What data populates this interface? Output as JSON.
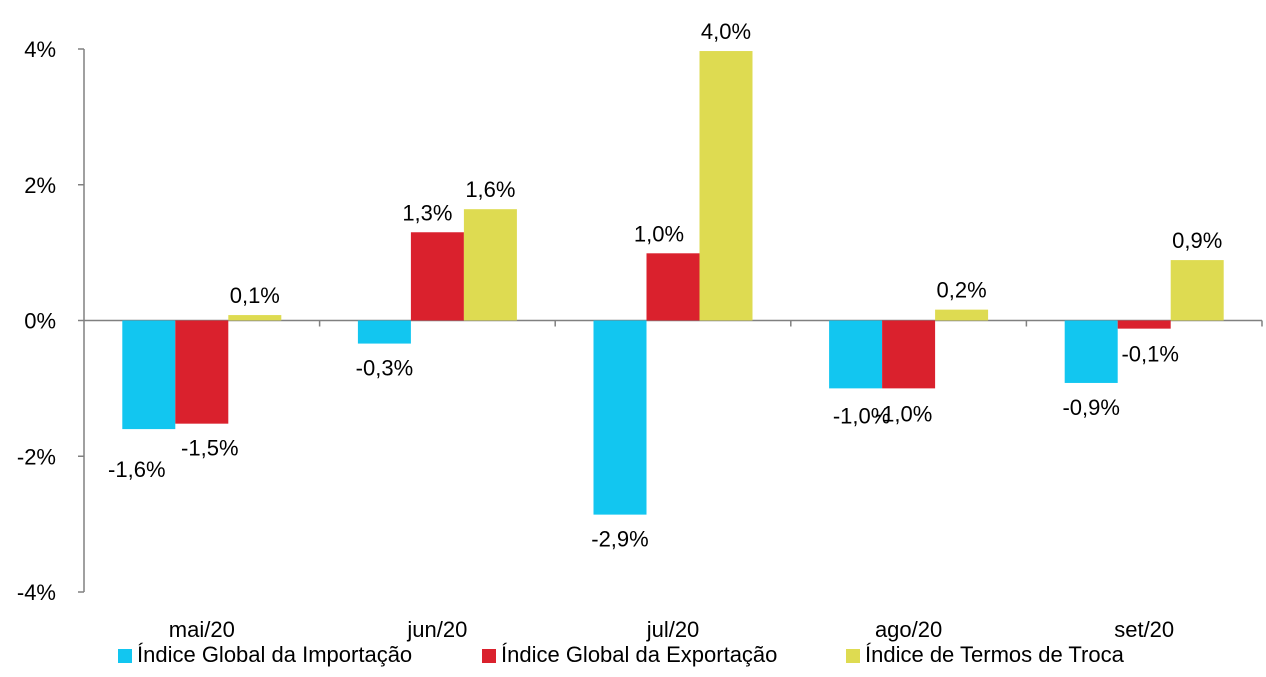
{
  "chart_data": {
    "type": "bar",
    "categories": [
      "mai/20",
      "jun/20",
      "jul/20",
      "ago/20",
      "set/20"
    ],
    "series": [
      {
        "name": "Índice Global da Importação",
        "color": "#12C6F0",
        "values": [
          -1.6,
          -0.34,
          -2.86,
          -1.0,
          -0.92
        ],
        "labels": [
          "-1,6%",
          "-0,3%",
          "-2,9%",
          "-1,0%",
          "-0,9%"
        ]
      },
      {
        "name": "Índice Global da Exportação",
        "color": "#DA212D",
        "values": [
          -1.52,
          1.3,
          0.99,
          -1.0,
          -0.12
        ],
        "labels": [
          "-1,5%",
          "1,3%",
          "1,0%",
          "-1,0%",
          "-0,1%"
        ]
      },
      {
        "name": "Índice de Termos de Troca",
        "color": "#DEDB51",
        "values": [
          0.08,
          1.64,
          3.97,
          0.16,
          0.89
        ],
        "labels": [
          "0,1%",
          "1,6%",
          "4,0%",
          "0,2%",
          "0,9%"
        ]
      }
    ],
    "yticks": [
      {
        "value": 4,
        "label": "4%"
      },
      {
        "value": 2,
        "label": "2%"
      },
      {
        "value": 0,
        "label": "0%"
      },
      {
        "value": -2,
        "label": "-2%"
      },
      {
        "value": -4,
        "label": "-4%"
      }
    ],
    "ylim": [
      -4,
      4
    ],
    "grid": false,
    "legend_position": "bottom"
  }
}
